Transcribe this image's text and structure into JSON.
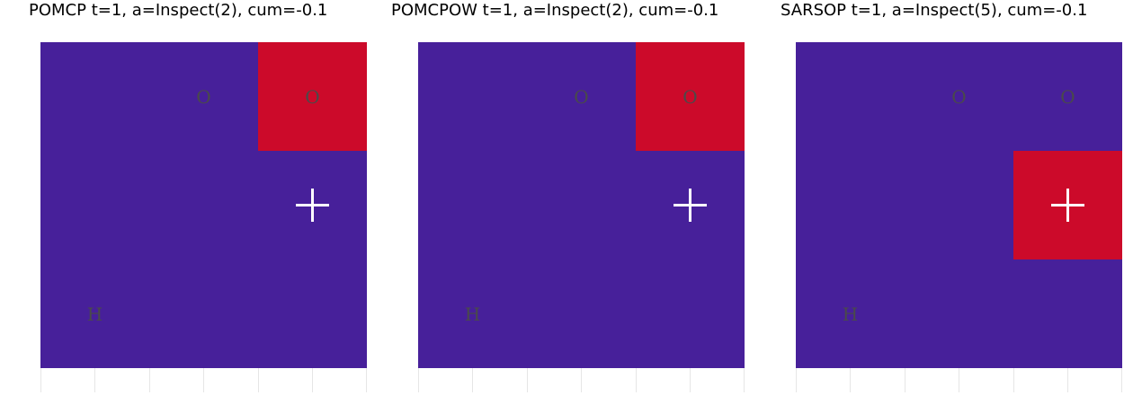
{
  "colors": {
    "background": "#47209a",
    "highlight": "#cc0a2a",
    "agent": "#ffffff"
  },
  "panels": [
    {
      "title": "POMCP  t=1, a=Inspect(2), cum=-0.1",
      "highlight_cell": 2,
      "cells": [
        "",
        "O",
        "O",
        "",
        "",
        "",
        "H",
        "",
        ""
      ],
      "agent_cell": 5,
      "agent_icon": "plus-icon"
    },
    {
      "title": "POMCPOW  t=1, a=Inspect(2), cum=-0.1",
      "highlight_cell": 2,
      "cells": [
        "",
        "O",
        "O",
        "",
        "",
        "",
        "H",
        "",
        ""
      ],
      "agent_cell": 5,
      "agent_icon": "plus-icon"
    },
    {
      "title": "SARSOP  t=1, a=Inspect(5), cum=-0.1",
      "highlight_cell": 5,
      "cells": [
        "",
        "O",
        "O",
        "",
        "",
        "",
        "H",
        "",
        ""
      ],
      "agent_cell": 5,
      "agent_icon": "plus-icon"
    }
  ]
}
